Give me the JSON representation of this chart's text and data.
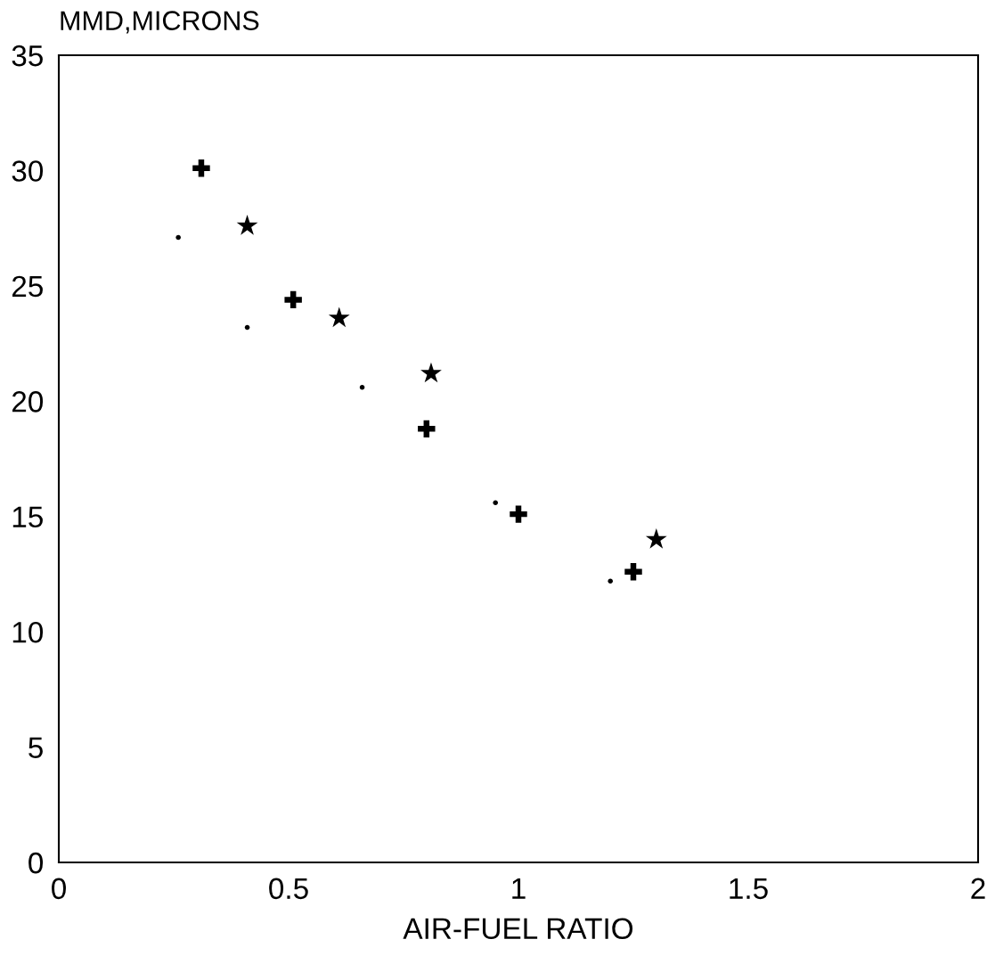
{
  "chart_data": {
    "type": "scatter",
    "xlabel": "AIR-FUEL RATIO",
    "ylabel": "MMD,MICRONS",
    "xlim": [
      0,
      2
    ],
    "xticks": [
      0,
      0.5,
      1,
      1.5,
      2
    ],
    "ylim": [
      0,
      35
    ],
    "yticks": [
      0,
      5,
      10,
      15,
      20,
      25,
      30,
      35
    ],
    "grid": false,
    "legend": false,
    "series": [
      {
        "color": "#000000",
        "marker": "circle",
        "x": [
          0.26,
          0.41,
          0.66,
          0.95,
          1.2
        ],
        "values": [
          27.1,
          23.2,
          20.6,
          15.6,
          12.2
        ]
      },
      {
        "color": "#000000",
        "marker": "cross",
        "x": [
          0.31,
          0.51,
          0.8,
          1.0,
          1.25
        ],
        "values": [
          30.1,
          24.4,
          18.8,
          15.1,
          12.6
        ]
      },
      {
        "color": "#000000",
        "marker": "star",
        "x": [
          0.41,
          0.61,
          0.81,
          1.3
        ],
        "values": [
          27.6,
          23.6,
          21.2,
          14.0
        ]
      }
    ]
  }
}
